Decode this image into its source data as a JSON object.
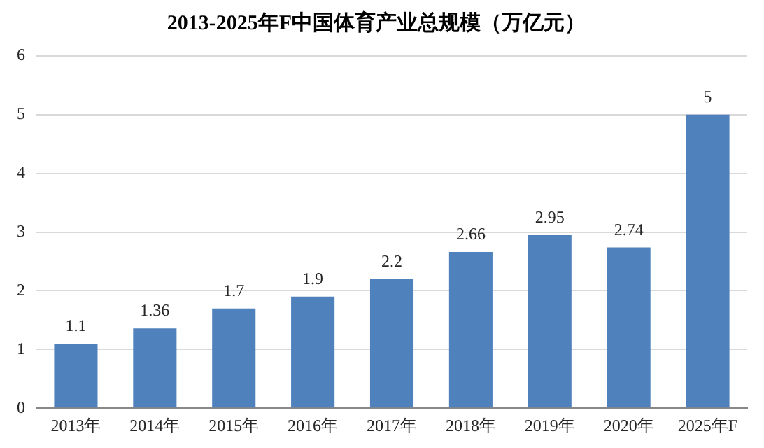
{
  "chart_data": {
    "type": "bar",
    "title": "2013-2025年F中国体育产业总规模（万亿元）",
    "categories": [
      "2013年",
      "2014年",
      "2015年",
      "2016年",
      "2017年",
      "2018年",
      "2019年",
      "2020年",
      "2025年F"
    ],
    "values": [
      1.1,
      1.36,
      1.7,
      1.9,
      2.2,
      2.66,
      2.95,
      2.74,
      5
    ],
    "color": "#4f81bd",
    "ylim": [
      0,
      6
    ],
    "yticks": [
      0,
      1,
      2,
      3,
      4,
      5,
      6
    ],
    "grid": "y",
    "data_labels": true
  }
}
